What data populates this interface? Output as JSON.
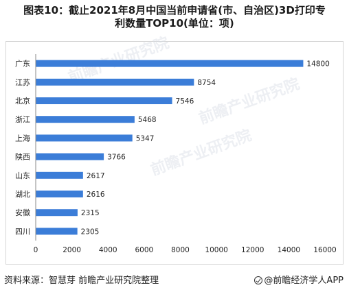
{
  "title": {
    "line1": "图表10：截止2021年8月中国当前申请省(市、自治区)3D打印专",
    "line2": "利数量TOP10(单位：项)"
  },
  "footer": {
    "source": "资料来源：智慧芽 前瞻产业研究院整理",
    "brand": "@前瞻经济学人APP"
  },
  "watermark": {
    "text": "前瞻产业研究院"
  },
  "colors": {
    "bar": "#3b7dd8",
    "axis": "#888888",
    "text": "#222222"
  },
  "chart_data": {
    "type": "bar",
    "orientation": "horizontal",
    "categories": [
      "广东",
      "江苏",
      "北京",
      "浙江",
      "上海",
      "陕西",
      "山东",
      "湖北",
      "安徽",
      "四川"
    ],
    "values": [
      14800,
      8754,
      7546,
      5468,
      5347,
      3766,
      2617,
      2616,
      2315,
      2305
    ],
    "xlim": [
      0,
      16000
    ],
    "xticks": [
      0,
      2000,
      4000,
      6000,
      8000,
      10000,
      12000,
      14000,
      16000
    ],
    "grid": false,
    "legend": "none",
    "title": "",
    "xlabel": "",
    "ylabel": ""
  }
}
